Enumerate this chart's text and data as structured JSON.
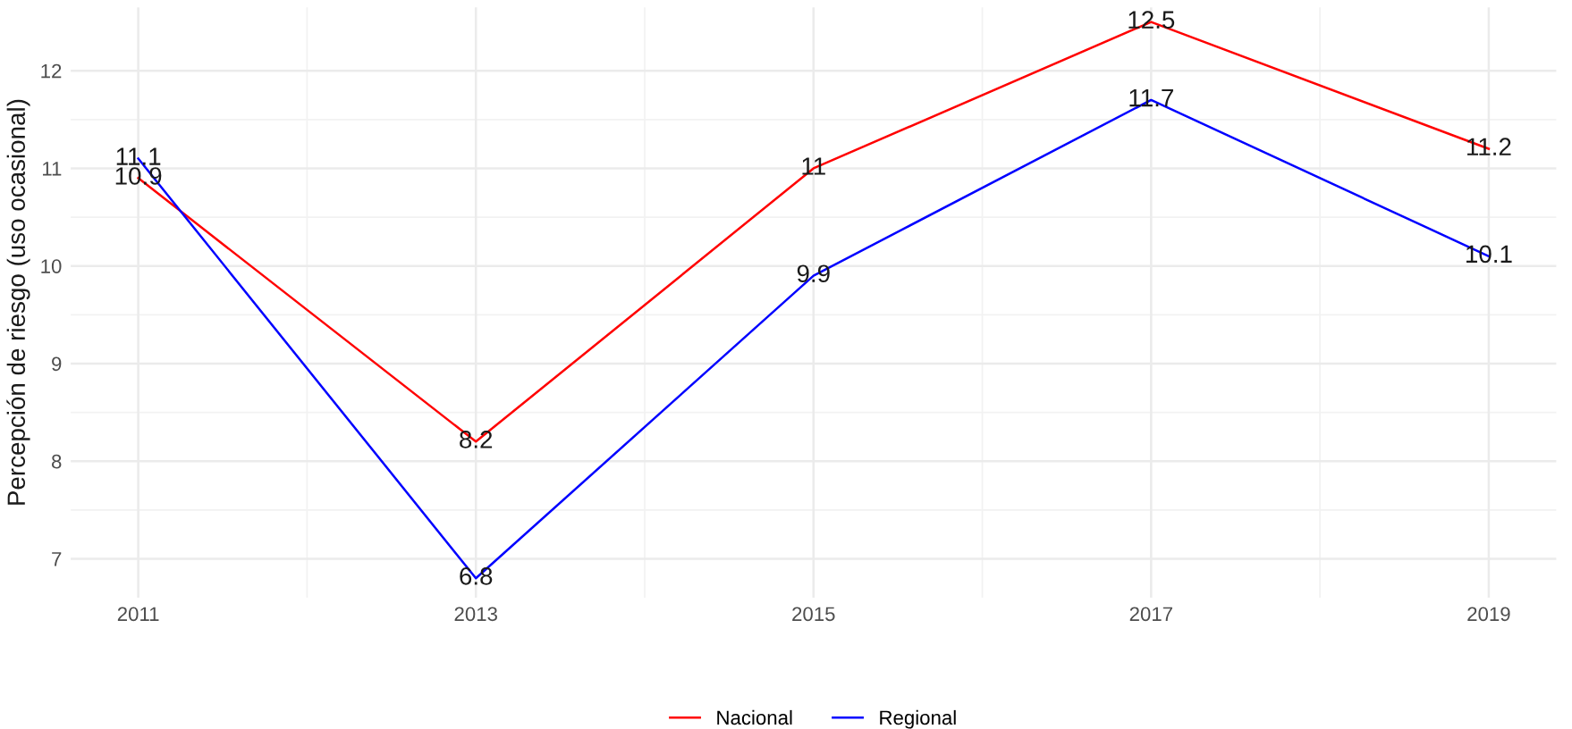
{
  "chart_data": {
    "type": "line",
    "ylabel": "Percepción de riesgo (uso ocasional)",
    "x": [
      2011,
      2013,
      2015,
      2017,
      2019
    ],
    "series": [
      {
        "name": "Nacional",
        "color": "#ff0000",
        "values": [
          10.9,
          8.2,
          11,
          12.5,
          11.2
        ]
      },
      {
        "name": "Regional",
        "color": "#0000ff",
        "values": [
          11.1,
          6.8,
          9.9,
          11.7,
          10.1
        ]
      }
    ],
    "xlim": [
      2010.6,
      2019.4
    ],
    "xticks": [
      2011,
      2013,
      2015,
      2017,
      2019
    ],
    "ylim": [
      6.6,
      12.65
    ],
    "yticks": [
      7,
      8,
      9,
      10,
      11,
      12
    ],
    "grid": true,
    "legend": "bottom",
    "data_labels": true,
    "marker": "none",
    "line_style": "solid"
  }
}
